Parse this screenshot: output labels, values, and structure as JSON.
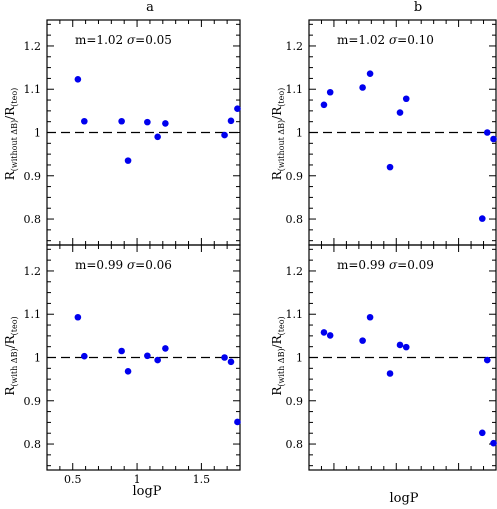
{
  "columns": [
    {
      "key": "a",
      "heading": "a",
      "xlabel": "logP",
      "x_tick_labels": [
        "0.5",
        "1",
        "1.5"
      ],
      "x_ticks": [
        0.5,
        1.0,
        1.5
      ],
      "xlim": [
        0.3,
        1.8
      ]
    },
    {
      "key": "b",
      "heading": "b",
      "xlabel": "logP",
      "x_tick_labels": [],
      "x_ticks": [
        0.5,
        1.0,
        1.5
      ],
      "xlim": [
        0.3,
        1.8
      ]
    }
  ],
  "rows": [
    {
      "key": "top",
      "ylabel_main": "R",
      "ylabel_sub": "(without ΔB)",
      "ylabel_den": "/R",
      "ylabel_den_sub": "(teo)"
    },
    {
      "key": "bottom",
      "ylabel_main": "R",
      "ylabel_sub": "(with ΔB)",
      "ylabel_den": "/R",
      "ylabel_den_sub": "(teo)"
    }
  ],
  "y_tick_labels": [
    "0.8",
    "0.9",
    "1",
    "1.1",
    "1.2"
  ],
  "colors": {
    "points": "#0000ee",
    "axes": "#000000",
    "reference_line": "#000000"
  },
  "chart_data": [
    {
      "panel": "a-top",
      "type": "scatter",
      "annotation": {
        "m": "m=1.02",
        "sigma_symbol": "σ",
        "sigma": "=0.05"
      },
      "xlim": [
        0.3,
        1.8
      ],
      "ylim": [
        0.74,
        1.26
      ],
      "reference_line_y": 1.0,
      "x": [
        0.54,
        0.59,
        0.88,
        0.93,
        1.08,
        1.16,
        1.22,
        1.68,
        1.73,
        1.78
      ],
      "y": [
        1.123,
        1.026,
        1.026,
        0.935,
        1.024,
        0.99,
        1.021,
        0.994,
        1.027,
        1.055
      ]
    },
    {
      "panel": "b-top",
      "type": "scatter",
      "annotation": {
        "m": "m=1.02",
        "sigma_symbol": "σ",
        "sigma": "=0.10"
      },
      "xlim": [
        0.3,
        1.8
      ],
      "ylim": [
        0.74,
        1.26
      ],
      "reference_line_y": 1.0,
      "x": [
        0.42,
        0.47,
        0.73,
        0.79,
        0.95,
        1.03,
        1.08,
        1.69,
        1.73,
        1.78
      ],
      "y": [
        1.064,
        1.093,
        1.104,
        1.136,
        0.92,
        1.046,
        1.078,
        0.801,
        1.0,
        0.985
      ]
    },
    {
      "panel": "a-bottom",
      "type": "scatter",
      "annotation": {
        "m": "m=0.99",
        "sigma_symbol": "σ",
        "sigma": "=0.06"
      },
      "xlim": [
        0.3,
        1.8
      ],
      "ylim": [
        0.74,
        1.26
      ],
      "reference_line_y": 1.0,
      "x": [
        0.54,
        0.59,
        0.88,
        0.93,
        1.08,
        1.16,
        1.22,
        1.68,
        1.73,
        1.78
      ],
      "y": [
        1.093,
        1.003,
        1.015,
        0.968,
        1.004,
        0.994,
        1.021,
        1.0,
        0.99,
        0.851
      ]
    },
    {
      "panel": "b-bottom",
      "type": "scatter",
      "annotation": {
        "m": "m=0.99",
        "sigma_symbol": "σ",
        "sigma": "=0.09"
      },
      "xlim": [
        0.3,
        1.8
      ],
      "ylim": [
        0.74,
        1.26
      ],
      "reference_line_y": 1.0,
      "x": [
        0.42,
        0.47,
        0.73,
        0.79,
        0.95,
        1.03,
        1.08,
        1.69,
        1.73,
        1.78
      ],
      "y": [
        1.058,
        1.051,
        1.039,
        1.093,
        0.963,
        1.029,
        1.024,
        0.826,
        0.994,
        0.802
      ]
    }
  ]
}
